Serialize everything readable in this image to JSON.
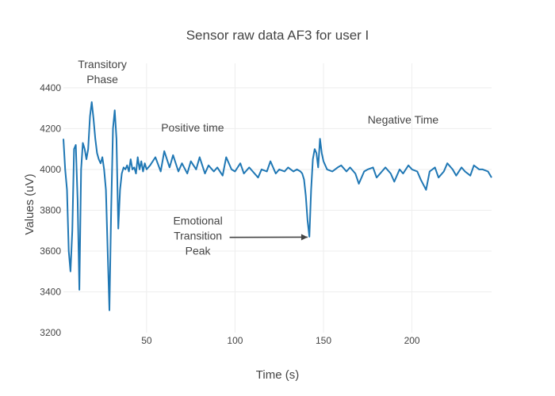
{
  "chart_data": {
    "type": "line",
    "title": "Sensor raw data  AF3 for user I",
    "xlabel": "Time (s)",
    "ylabel": "Values (uV)",
    "xlim": [
      3,
      245
    ],
    "ylim": [
      3200,
      4520
    ],
    "x_ticks": [
      50,
      100,
      150,
      200
    ],
    "y_ticks": [
      3200,
      3400,
      3600,
      3800,
      4000,
      4200,
      4400
    ],
    "grid": true,
    "series": [
      {
        "x": [
          3,
          4,
          5,
          6,
          7,
          8,
          9,
          10,
          11,
          12,
          13,
          14,
          15,
          16,
          17,
          18,
          19,
          20,
          21,
          22,
          23,
          24,
          25,
          26,
          27,
          28,
          29,
          30,
          31,
          32,
          33,
          34,
          35,
          36,
          37,
          38,
          39,
          40,
          41,
          42,
          43,
          44,
          45,
          46,
          47,
          48,
          49,
          50,
          52,
          55,
          58,
          60,
          63,
          65,
          68,
          70,
          73,
          75,
          78,
          80,
          83,
          85,
          88,
          90,
          93,
          95,
          98,
          100,
          103,
          105,
          108,
          110,
          113,
          115,
          118,
          120,
          123,
          125,
          128,
          130,
          133,
          135,
          137,
          138,
          139,
          140,
          141,
          142,
          143,
          144,
          145,
          146,
          147,
          148,
          149,
          150,
          152,
          155,
          158,
          160,
          163,
          165,
          168,
          170,
          173,
          175,
          178,
          180,
          183,
          185,
          188,
          190,
          193,
          195,
          198,
          200,
          203,
          205,
          208,
          210,
          213,
          215,
          218,
          220,
          223,
          225,
          228,
          230,
          233,
          235,
          238,
          240,
          243,
          245
        ],
        "y": [
          4150,
          4000,
          3900,
          3600,
          3500,
          3700,
          4100,
          4120,
          3850,
          3410,
          4000,
          4130,
          4100,
          4050,
          4100,
          4260,
          4330,
          4250,
          4150,
          4080,
          4050,
          4030,
          4060,
          4000,
          3900,
          3600,
          3310,
          3800,
          4200,
          4290,
          4150,
          3710,
          3900,
          3980,
          4010,
          4000,
          4020,
          3990,
          4050,
          4000,
          4010,
          3980,
          4060,
          4000,
          4040,
          3990,
          4030,
          4000,
          4020,
          4060,
          3990,
          4090,
          4010,
          4070,
          3990,
          4030,
          3980,
          4040,
          4000,
          4060,
          3980,
          4020,
          3990,
          4010,
          3970,
          4060,
          4000,
          3990,
          4030,
          3980,
          4010,
          3990,
          3960,
          4000,
          3990,
          4040,
          3980,
          4000,
          3990,
          4010,
          3990,
          4000,
          3990,
          3980,
          3950,
          3870,
          3750,
          3670,
          3900,
          4050,
          4100,
          4080,
          4010,
          4150,
          4080,
          4040,
          4000,
          3990,
          4010,
          4020,
          3990,
          4010,
          3980,
          3930,
          3990,
          4000,
          4010,
          3960,
          3990,
          4010,
          3980,
          3940,
          4000,
          3980,
          4020,
          4000,
          3990,
          3950,
          3900,
          3990,
          4010,
          3960,
          3990,
          4030,
          4000,
          3970,
          4010,
          3990,
          3970,
          4020,
          4000,
          4000,
          3990,
          3960
        ]
      }
    ],
    "annotations": [
      {
        "lines": [
          "Transitory",
          "Phase"
        ],
        "x": 25,
        "y": 4480
      },
      {
        "lines": [
          "Positive time"
        ],
        "x": 76,
        "y": 4205
      },
      {
        "lines": [
          "Negative Time"
        ],
        "x": 195,
        "y": 4245
      },
      {
        "lines": [
          "Emotional",
          "Transition",
          "Peak"
        ],
        "x": 79,
        "y": 3675,
        "arrow_to": [
          141,
          3668
        ]
      }
    ]
  }
}
